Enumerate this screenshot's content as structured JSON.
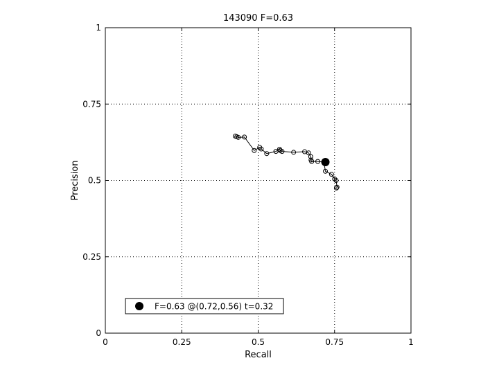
{
  "chart_data": {
    "type": "line",
    "title": "143090 F=0.63",
    "xlabel": "Recall",
    "ylabel": "Precision",
    "xlim": [
      0,
      1
    ],
    "ylim": [
      0,
      1
    ],
    "xticks": [
      0,
      0.25,
      0.5,
      0.75,
      1
    ],
    "yticks": [
      0,
      0.25,
      0.5,
      0.75,
      1
    ],
    "xtick_labels": [
      "0",
      "0.25",
      "0.5",
      "0.75",
      "1"
    ],
    "ytick_labels": [
      "0",
      "0.25",
      "0.5",
      "0.75",
      "1"
    ],
    "grid": true,
    "legend_position": "bottom-left",
    "series": [
      {
        "marker": "open-circle",
        "color": "#000000",
        "x": [
          0.425,
          0.43,
          0.435,
          0.455,
          0.487,
          0.505,
          0.51,
          0.528,
          0.558,
          0.57,
          0.572,
          0.578,
          0.616,
          0.652,
          0.665,
          0.672,
          0.673,
          0.675,
          0.695,
          0.715,
          0.72,
          0.74,
          0.75,
          0.755,
          0.758,
          0.756
        ],
        "y": [
          0.645,
          0.643,
          0.641,
          0.642,
          0.598,
          0.608,
          0.603,
          0.588,
          0.595,
          0.602,
          0.598,
          0.595,
          0.592,
          0.594,
          0.59,
          0.578,
          0.567,
          0.562,
          0.562,
          0.56,
          0.53,
          0.52,
          0.505,
          0.5,
          0.478,
          0.475
        ]
      }
    ],
    "highlight": {
      "x": 0.72,
      "y": 0.56,
      "marker": "filled-circle",
      "color": "#000000"
    },
    "legend": [
      {
        "label": "F=0.63 @(0.72,0.56) t=0.32",
        "marker": "filled-circle"
      }
    ]
  }
}
